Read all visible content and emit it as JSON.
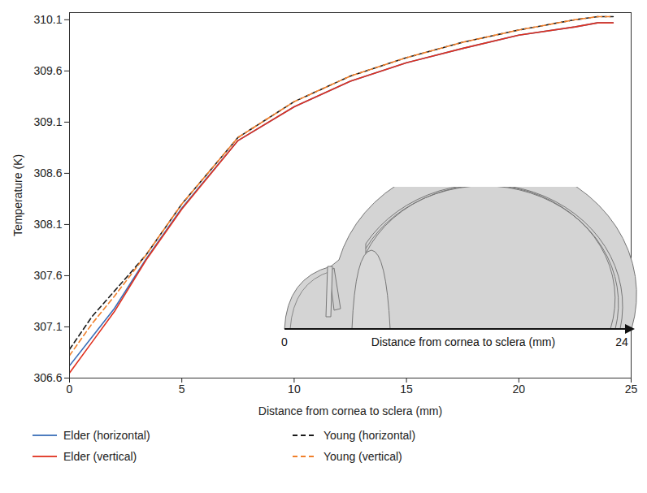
{
  "chart_data": {
    "type": "line",
    "xlabel": "Distance from cornea to sclera (mm)",
    "ylabel": "Temperature (K)",
    "xlim": [
      0,
      25
    ],
    "xticks": [
      0,
      5,
      10,
      15,
      20,
      25
    ],
    "ylim": [
      306.6,
      310.17
    ],
    "yticks": [
      306.6,
      307.1,
      307.6,
      308.1,
      308.6,
      309.1,
      309.6,
      310.1
    ],
    "grid": false,
    "legend": "bottom",
    "x": [
      0,
      1,
      2,
      3.4,
      5,
      7.5,
      10,
      12.5,
      15,
      17.5,
      20,
      22.5,
      23.5,
      24.2
    ],
    "series": [
      {
        "name": "Elder (horizontal)",
        "color": "#3a6fb8",
        "line_style": "solid",
        "values": [
          306.72,
          307.0,
          307.28,
          307.76,
          308.26,
          308.92,
          309.25,
          309.5,
          309.68,
          309.82,
          309.95,
          310.03,
          310.07,
          310.07
        ]
      },
      {
        "name": "Young (horizontal)",
        "color": "#1a1a1a",
        "line_style": "dashed",
        "values": [
          306.88,
          307.2,
          307.45,
          307.8,
          308.3,
          308.95,
          309.3,
          309.55,
          309.73,
          309.88,
          310.0,
          310.1,
          310.13,
          310.13
        ]
      },
      {
        "name": "Elder (vertical)",
        "color": "#e0301e",
        "line_style": "solid",
        "values": [
          306.65,
          306.95,
          307.25,
          307.75,
          308.25,
          308.92,
          309.25,
          309.5,
          309.68,
          309.82,
          309.95,
          310.03,
          310.07,
          310.07
        ]
      },
      {
        "name": "Young (vertical)",
        "color": "#f07f2a",
        "line_style": "dashed",
        "values": [
          306.82,
          307.13,
          307.4,
          307.8,
          308.3,
          308.95,
          309.3,
          309.55,
          309.73,
          309.88,
          310.0,
          310.1,
          310.13,
          310.13
        ]
      }
    ],
    "inset": {
      "axis_label": "Distance from cornea to sclera (mm)",
      "axis_start": 0,
      "axis_end": 24
    }
  }
}
